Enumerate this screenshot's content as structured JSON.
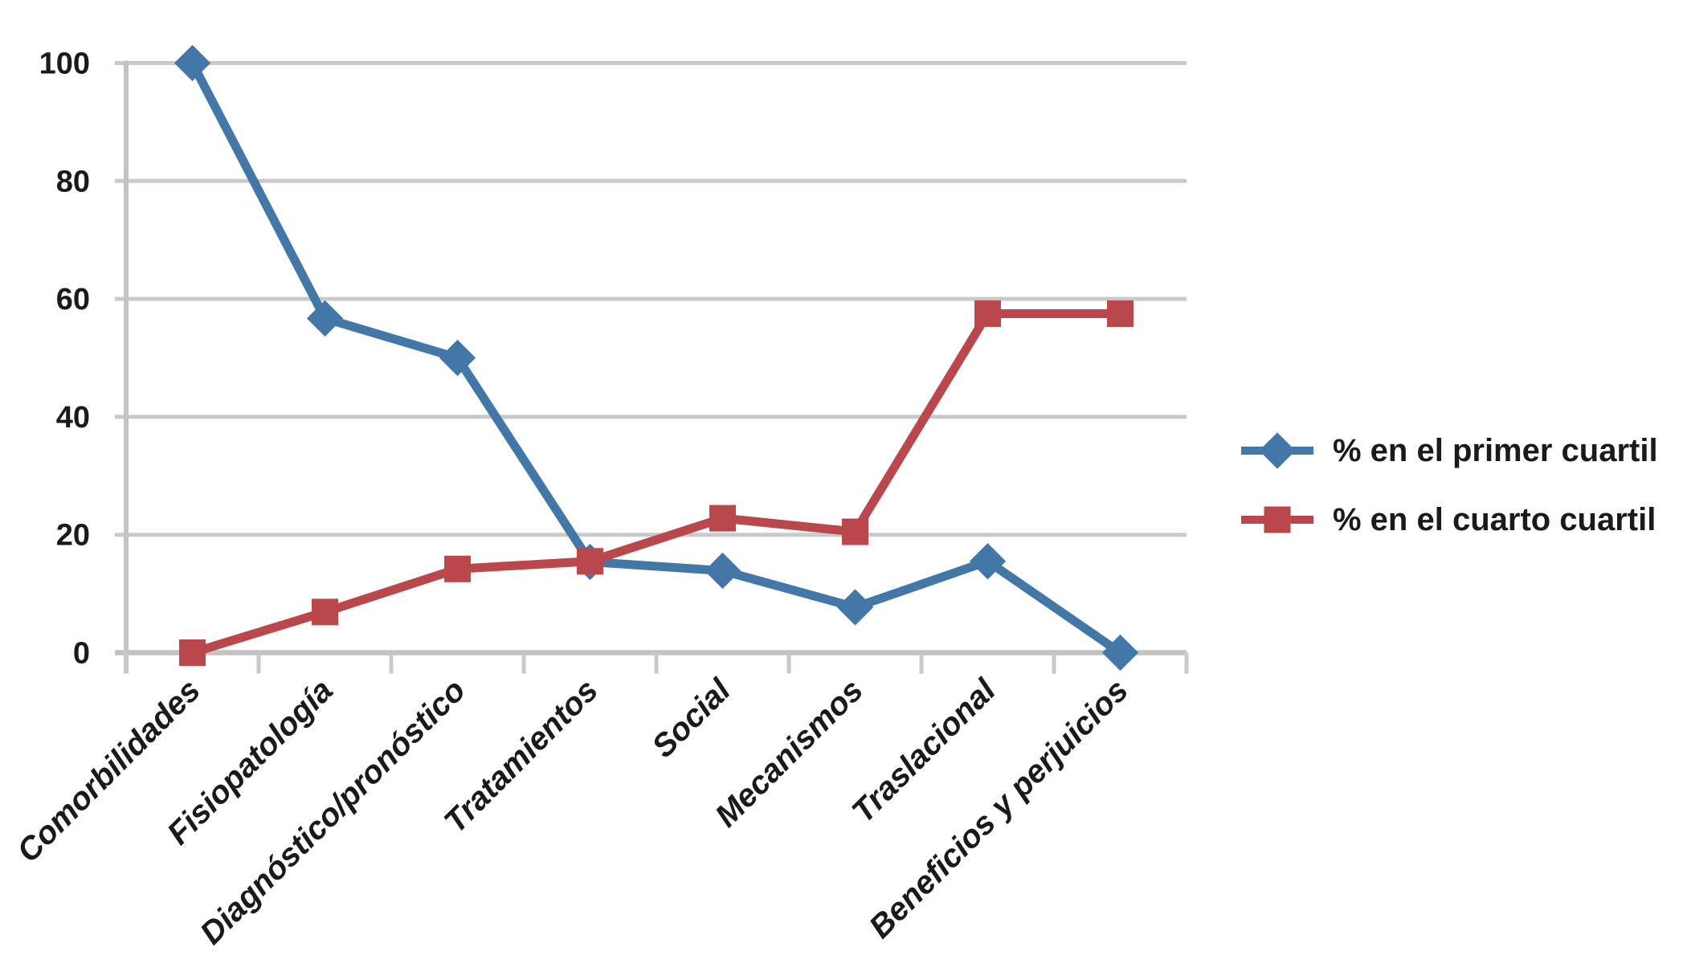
{
  "chart_data": {
    "type": "line",
    "title": "",
    "categories": [
      "Comorbilidades",
      "Fisiopatología",
      "Diagnóstico/pronóstico",
      "Tratamientos",
      "Social",
      "Mecanismos",
      "Traslacional",
      "Beneficios y perjuicios"
    ],
    "series": [
      {
        "name": "% en el primer cuartil",
        "marker": "diamond",
        "color": "#4377A8",
        "values": [
          100,
          56.7,
          50,
          15.4,
          13.9,
          7.7,
          15.5,
          0
        ]
      },
      {
        "name": "% en el cuarto cuartil",
        "marker": "square",
        "color": "#B9474C",
        "values": [
          0,
          6.9,
          14.2,
          15.5,
          22.8,
          20.5,
          57.5,
          57.5
        ]
      }
    ],
    "ylim": [
      0,
      100
    ],
    "yticks": [
      0,
      20,
      40,
      60,
      80,
      100
    ],
    "grid": "horizontal",
    "legend_position": "right",
    "colors": {
      "grid": "#C9C9C9",
      "axis": "#C3C3C3",
      "text": "#1A1A1A",
      "background": "#FFFFFF"
    }
  }
}
